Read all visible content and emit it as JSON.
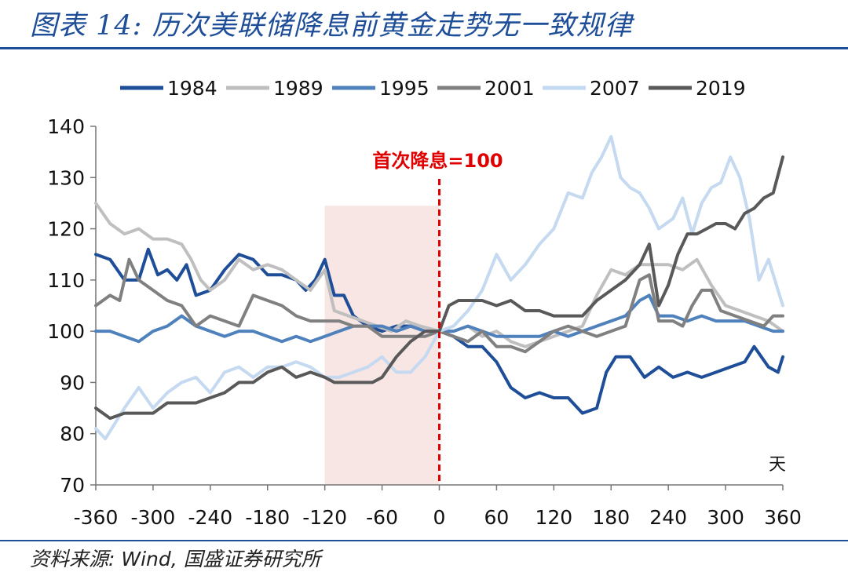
{
  "title": "图表 14:  历次美联储降息前黄金走势无一致规律",
  "source": "资料来源: Wind, 国盛证券研究所",
  "chart_data": {
    "type": "line",
    "xlabel": "天",
    "ylabel": "",
    "xlim": [
      -360,
      360
    ],
    "ylim": [
      70,
      140
    ],
    "xticks": [
      -360,
      -300,
      -240,
      -180,
      -120,
      -60,
      0,
      60,
      120,
      180,
      240,
      300,
      360
    ],
    "yticks": [
      70,
      80,
      90,
      100,
      110,
      120,
      130,
      140
    ],
    "legend_position": "top",
    "shaded_region": [
      -120,
      0
    ],
    "annotation": {
      "x": 0,
      "text": "首次降息=100"
    },
    "series": [
      {
        "name": "1984",
        "color": "#1f4e99",
        "width": 4,
        "points": [
          [
            -360,
            115
          ],
          [
            -345,
            114
          ],
          [
            -330,
            110
          ],
          [
            -315,
            110
          ],
          [
            -305,
            116
          ],
          [
            -295,
            111
          ],
          [
            -285,
            112
          ],
          [
            -275,
            110
          ],
          [
            -265,
            113
          ],
          [
            -255,
            107
          ],
          [
            -240,
            108
          ],
          [
            -225,
            112
          ],
          [
            -210,
            115
          ],
          [
            -195,
            114
          ],
          [
            -180,
            111
          ],
          [
            -165,
            111
          ],
          [
            -150,
            110
          ],
          [
            -140,
            108
          ],
          [
            -130,
            110
          ],
          [
            -120,
            114
          ],
          [
            -110,
            107
          ],
          [
            -100,
            107
          ],
          [
            -90,
            103
          ],
          [
            -75,
            101
          ],
          [
            -60,
            100
          ],
          [
            -45,
            101
          ],
          [
            -30,
            101
          ],
          [
            -15,
            100
          ],
          [
            0,
            100
          ],
          [
            15,
            99
          ],
          [
            30,
            97
          ],
          [
            45,
            97
          ],
          [
            60,
            94
          ],
          [
            75,
            89
          ],
          [
            90,
            87
          ],
          [
            105,
            88
          ],
          [
            120,
            87
          ],
          [
            135,
            87
          ],
          [
            150,
            84
          ],
          [
            165,
            85
          ],
          [
            175,
            92
          ],
          [
            185,
            95
          ],
          [
            200,
            95
          ],
          [
            215,
            91
          ],
          [
            230,
            93
          ],
          [
            245,
            91
          ],
          [
            260,
            92
          ],
          [
            275,
            91
          ],
          [
            290,
            92
          ],
          [
            305,
            93
          ],
          [
            320,
            94
          ],
          [
            330,
            97
          ],
          [
            345,
            93
          ],
          [
            355,
            92
          ],
          [
            360,
            95
          ]
        ]
      },
      {
        "name": "1989",
        "color": "#bfbfbf",
        "width": 4,
        "points": [
          [
            -360,
            125
          ],
          [
            -345,
            121
          ],
          [
            -330,
            119
          ],
          [
            -315,
            120
          ],
          [
            -300,
            118
          ],
          [
            -285,
            118
          ],
          [
            -270,
            117
          ],
          [
            -260,
            114
          ],
          [
            -250,
            110
          ],
          [
            -240,
            108
          ],
          [
            -225,
            110
          ],
          [
            -210,
            114
          ],
          [
            -195,
            112
          ],
          [
            -180,
            113
          ],
          [
            -165,
            112
          ],
          [
            -150,
            110
          ],
          [
            -135,
            108
          ],
          [
            -120,
            112
          ],
          [
            -110,
            104
          ],
          [
            -95,
            103
          ],
          [
            -80,
            102
          ],
          [
            -65,
            101
          ],
          [
            -50,
            100
          ],
          [
            -35,
            102
          ],
          [
            -20,
            101
          ],
          [
            0,
            100
          ],
          [
            15,
            100
          ],
          [
            30,
            101
          ],
          [
            45,
            99
          ],
          [
            60,
            100
          ],
          [
            75,
            98
          ],
          [
            90,
            97
          ],
          [
            105,
            98
          ],
          [
            120,
            99
          ],
          [
            135,
            100
          ],
          [
            150,
            101
          ],
          [
            165,
            107
          ],
          [
            180,
            112
          ],
          [
            195,
            111
          ],
          [
            210,
            113
          ],
          [
            225,
            113
          ],
          [
            240,
            113
          ],
          [
            255,
            112
          ],
          [
            270,
            114
          ],
          [
            285,
            109
          ],
          [
            300,
            105
          ],
          [
            315,
            104
          ],
          [
            330,
            103
          ],
          [
            345,
            102
          ],
          [
            360,
            100
          ]
        ]
      },
      {
        "name": "1995",
        "color": "#4f81bd",
        "width": 4,
        "points": [
          [
            -360,
            100
          ],
          [
            -345,
            100
          ],
          [
            -330,
            99
          ],
          [
            -315,
            98
          ],
          [
            -300,
            100
          ],
          [
            -285,
            101
          ],
          [
            -270,
            103
          ],
          [
            -255,
            101
          ],
          [
            -240,
            100
          ],
          [
            -225,
            99
          ],
          [
            -210,
            100
          ],
          [
            -195,
            100
          ],
          [
            -180,
            99
          ],
          [
            -165,
            98
          ],
          [
            -150,
            99
          ],
          [
            -135,
            98
          ],
          [
            -120,
            99
          ],
          [
            -105,
            100
          ],
          [
            -90,
            101
          ],
          [
            -75,
            101
          ],
          [
            -60,
            101
          ],
          [
            -45,
            100
          ],
          [
            -30,
            101
          ],
          [
            -15,
            100
          ],
          [
            0,
            100
          ],
          [
            15,
            100
          ],
          [
            30,
            101
          ],
          [
            45,
            100
          ],
          [
            60,
            99
          ],
          [
            75,
            99
          ],
          [
            90,
            99
          ],
          [
            105,
            99
          ],
          [
            120,
            100
          ],
          [
            135,
            99
          ],
          [
            150,
            100
          ],
          [
            165,
            101
          ],
          [
            180,
            102
          ],
          [
            195,
            103
          ],
          [
            210,
            106
          ],
          [
            220,
            107
          ],
          [
            230,
            103
          ],
          [
            245,
            103
          ],
          [
            260,
            102
          ],
          [
            275,
            103
          ],
          [
            290,
            102
          ],
          [
            305,
            102
          ],
          [
            320,
            102
          ],
          [
            335,
            101
          ],
          [
            350,
            100
          ],
          [
            360,
            100
          ]
        ]
      },
      {
        "name": "2001",
        "color": "#808080",
        "width": 4,
        "points": [
          [
            -360,
            105
          ],
          [
            -345,
            107
          ],
          [
            -335,
            106
          ],
          [
            -325,
            114
          ],
          [
            -315,
            110
          ],
          [
            -300,
            108
          ],
          [
            -285,
            106
          ],
          [
            -270,
            105
          ],
          [
            -255,
            101
          ],
          [
            -240,
            103
          ],
          [
            -225,
            102
          ],
          [
            -210,
            101
          ],
          [
            -195,
            107
          ],
          [
            -180,
            106
          ],
          [
            -165,
            105
          ],
          [
            -150,
            103
          ],
          [
            -135,
            102
          ],
          [
            -120,
            102
          ],
          [
            -105,
            102
          ],
          [
            -90,
            101
          ],
          [
            -75,
            101
          ],
          [
            -60,
            99
          ],
          [
            -45,
            99
          ],
          [
            -30,
            99
          ],
          [
            -15,
            99
          ],
          [
            0,
            100
          ],
          [
            15,
            99
          ],
          [
            30,
            98
          ],
          [
            45,
            100
          ],
          [
            60,
            97
          ],
          [
            75,
            97
          ],
          [
            90,
            96
          ],
          [
            105,
            98
          ],
          [
            120,
            100
          ],
          [
            135,
            101
          ],
          [
            150,
            100
          ],
          [
            165,
            99
          ],
          [
            180,
            100
          ],
          [
            195,
            101
          ],
          [
            210,
            110
          ],
          [
            220,
            111
          ],
          [
            230,
            102
          ],
          [
            245,
            102
          ],
          [
            255,
            101
          ],
          [
            265,
            105
          ],
          [
            275,
            108
          ],
          [
            285,
            108
          ],
          [
            295,
            104
          ],
          [
            310,
            103
          ],
          [
            325,
            102
          ],
          [
            340,
            101
          ],
          [
            350,
            103
          ],
          [
            360,
            103
          ]
        ]
      },
      {
        "name": "2007",
        "color": "#c5d9f1",
        "width": 4,
        "points": [
          [
            -360,
            81
          ],
          [
            -350,
            79
          ],
          [
            -340,
            82
          ],
          [
            -330,
            85
          ],
          [
            -315,
            89
          ],
          [
            -300,
            85
          ],
          [
            -285,
            88
          ],
          [
            -270,
            90
          ],
          [
            -255,
            91
          ],
          [
            -240,
            88
          ],
          [
            -225,
            92
          ],
          [
            -210,
            93
          ],
          [
            -195,
            91
          ],
          [
            -180,
            93
          ],
          [
            -165,
            93
          ],
          [
            -150,
            94
          ],
          [
            -135,
            93
          ],
          [
            -120,
            91
          ],
          [
            -105,
            91
          ],
          [
            -90,
            92
          ],
          [
            -75,
            93
          ],
          [
            -60,
            95
          ],
          [
            -45,
            92
          ],
          [
            -30,
            92
          ],
          [
            -15,
            95
          ],
          [
            0,
            100
          ],
          [
            15,
            101
          ],
          [
            30,
            104
          ],
          [
            45,
            108
          ],
          [
            60,
            115
          ],
          [
            75,
            110
          ],
          [
            90,
            113
          ],
          [
            105,
            117
          ],
          [
            120,
            120
          ],
          [
            135,
            127
          ],
          [
            150,
            126
          ],
          [
            160,
            131
          ],
          [
            170,
            134
          ],
          [
            180,
            138
          ],
          [
            190,
            130
          ],
          [
            200,
            128
          ],
          [
            210,
            127
          ],
          [
            220,
            124
          ],
          [
            230,
            120
          ],
          [
            245,
            122
          ],
          [
            255,
            126
          ],
          [
            265,
            119
          ],
          [
            275,
            125
          ],
          [
            285,
            128
          ],
          [
            295,
            129
          ],
          [
            305,
            134
          ],
          [
            315,
            130
          ],
          [
            325,
            122
          ],
          [
            335,
            110
          ],
          [
            345,
            114
          ],
          [
            355,
            108
          ],
          [
            360,
            105
          ]
        ]
      },
      {
        "name": "2019",
        "color": "#595959",
        "width": 4,
        "points": [
          [
            -360,
            85
          ],
          [
            -345,
            83
          ],
          [
            -330,
            84
          ],
          [
            -315,
            84
          ],
          [
            -300,
            84
          ],
          [
            -285,
            86
          ],
          [
            -270,
            86
          ],
          [
            -255,
            86
          ],
          [
            -240,
            87
          ],
          [
            -225,
            88
          ],
          [
            -210,
            90
          ],
          [
            -195,
            90
          ],
          [
            -180,
            92
          ],
          [
            -165,
            93
          ],
          [
            -150,
            91
          ],
          [
            -135,
            92
          ],
          [
            -120,
            91
          ],
          [
            -110,
            90
          ],
          [
            -100,
            90
          ],
          [
            -85,
            90
          ],
          [
            -70,
            90
          ],
          [
            -60,
            91
          ],
          [
            -45,
            95
          ],
          [
            -30,
            98
          ],
          [
            -15,
            100
          ],
          [
            0,
            100
          ],
          [
            10,
            105
          ],
          [
            20,
            106
          ],
          [
            30,
            106
          ],
          [
            45,
            106
          ],
          [
            60,
            105
          ],
          [
            75,
            106
          ],
          [
            90,
            104
          ],
          [
            105,
            104
          ],
          [
            120,
            103
          ],
          [
            135,
            103
          ],
          [
            150,
            103
          ],
          [
            165,
            106
          ],
          [
            180,
            108
          ],
          [
            195,
            110
          ],
          [
            210,
            113
          ],
          [
            220,
            117
          ],
          [
            230,
            105
          ],
          [
            240,
            109
          ],
          [
            250,
            115
          ],
          [
            260,
            119
          ],
          [
            270,
            119
          ],
          [
            280,
            120
          ],
          [
            290,
            121
          ],
          [
            300,
            121
          ],
          [
            310,
            120
          ],
          [
            320,
            123
          ],
          [
            330,
            124
          ],
          [
            340,
            126
          ],
          [
            350,
            127
          ],
          [
            360,
            134
          ]
        ]
      }
    ]
  }
}
